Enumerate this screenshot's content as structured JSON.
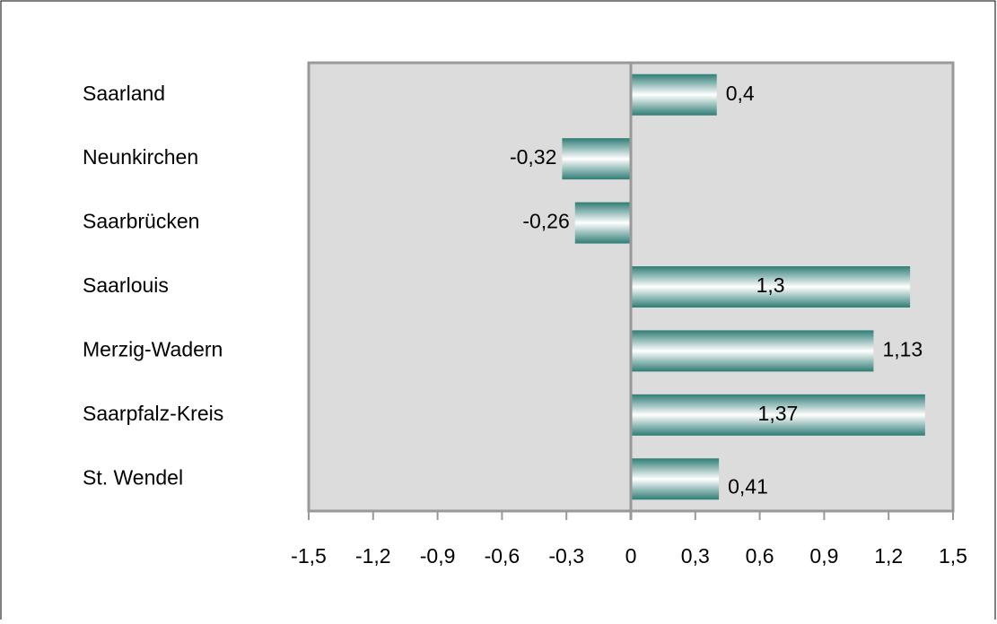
{
  "chart_data": {
    "type": "bar",
    "orientation": "horizontal",
    "categories": [
      "Saarland",
      "Neunkirchen",
      "Saarbrücken",
      "Saarlouis",
      "Merzig-Wadern",
      "Saarpfalz-Kreis",
      "St. Wendel"
    ],
    "values": [
      0.4,
      -0.32,
      -0.26,
      1.3,
      1.13,
      1.37,
      0.41
    ],
    "value_labels": [
      "0,4",
      "-0,32",
      "-0,26",
      "1,3",
      "1,13",
      "1,37",
      "0,41"
    ],
    "color": "#2f7d76",
    "xlim": [
      -1.5,
      1.5
    ],
    "xticks": [
      {
        "value": -1.5,
        "label": "-1,5"
      },
      {
        "value": -1.2,
        "label": "-1,2"
      },
      {
        "value": -0.9,
        "label": "-0,9"
      },
      {
        "value": -0.6,
        "label": "-0,6"
      },
      {
        "value": -0.3,
        "label": "-0,3"
      },
      0,
      {
        "value": 0.3,
        "label": "0,3"
      },
      {
        "value": 0.6,
        "label": "0,6"
      },
      {
        "value": 0.9,
        "label": "0,9"
      },
      {
        "value": 1.2,
        "label": "1,2"
      },
      {
        "value": 1.5,
        "label": "1,5"
      }
    ],
    "grid": false
  }
}
